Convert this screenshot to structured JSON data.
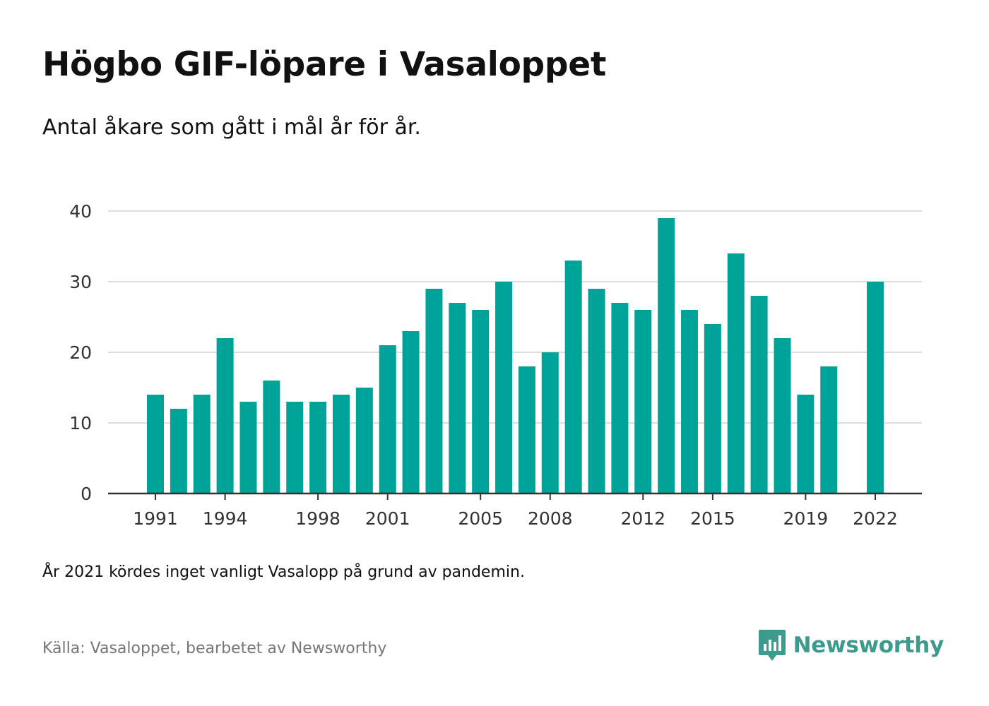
{
  "header": {
    "title": "Högbo GIF-löpare i Vasaloppet",
    "subtitle": "Antal åkare som gått i mål år för år."
  },
  "footer": {
    "note": "År 2021 kördes inget vanligt Vasalopp på grund av pandemin.",
    "source": "Källa: Vasaloppet, bearbetet av Newsworthy",
    "brand": "Newsworthy",
    "brand_icon": "newsworthy-logo-icon"
  },
  "colors": {
    "bar": "#00a398",
    "grid": "#dddddd",
    "axis": "#333333",
    "brand": "#3d9b8e"
  },
  "chart_data": {
    "type": "bar",
    "title": "Högbo GIF-löpare i Vasaloppet",
    "subtitle": "Antal åkare som gått i mål år för år.",
    "xlabel": "",
    "ylabel": "",
    "ylim": [
      0,
      40
    ],
    "yticks": [
      0,
      10,
      20,
      30,
      40
    ],
    "xticks": [
      "1991",
      "1994",
      "1998",
      "2001",
      "2005",
      "2008",
      "2012",
      "2015",
      "2019",
      "2022"
    ],
    "grid": true,
    "categories": [
      "1991",
      "1992",
      "1993",
      "1994",
      "1995",
      "1996",
      "1997",
      "1998",
      "1999",
      "2000",
      "2001",
      "2002",
      "2003",
      "2004",
      "2005",
      "2006",
      "2007",
      "2008",
      "2009",
      "2010",
      "2011",
      "2012",
      "2013",
      "2014",
      "2015",
      "2016",
      "2017",
      "2018",
      "2019",
      "2020",
      "2021",
      "2022"
    ],
    "values": [
      14,
      12,
      14,
      22,
      13,
      16,
      13,
      13,
      14,
      15,
      21,
      23,
      29,
      27,
      26,
      30,
      18,
      20,
      33,
      29,
      27,
      26,
      39,
      26,
      24,
      34,
      28,
      22,
      14,
      18,
      null,
      30
    ]
  }
}
